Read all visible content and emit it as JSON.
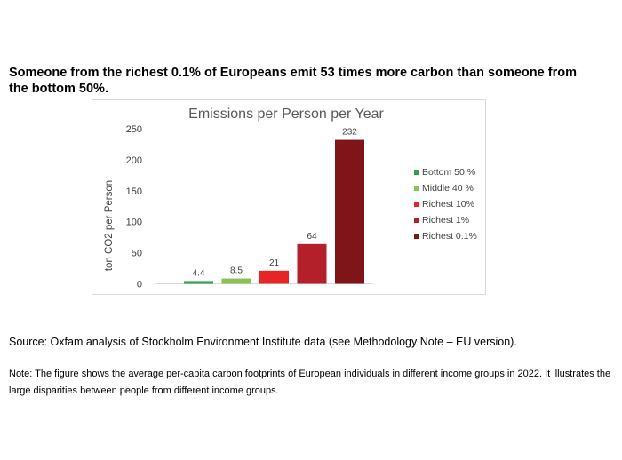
{
  "headline": "Someone from the richest 0.1% of Europeans emit 53 times more carbon than someone from the bottom 50%.",
  "source": "Source: Oxfam analysis of Stockholm Environment Institute data (see Methodology Note – EU version).",
  "note": "Note: The figure shows the average per-capita carbon footprints of European individuals in different income groups in 2022. It illustrates the large disparities between people from different income groups.",
  "chart_data": {
    "type": "bar",
    "title": "Emissions per Person per Year",
    "xlabel": "",
    "ylabel": "ton CO2 per Person",
    "ylim": [
      0,
      250
    ],
    "yticks": [
      0,
      50,
      100,
      150,
      200,
      250
    ],
    "grid": false,
    "legend_position": "right",
    "categories": [
      "Bottom 50 %",
      "Middle 40 %",
      "Richest 10%",
      "Richest 1%",
      "Richest 0.1%"
    ],
    "values": [
      4.4,
      8.5,
      21,
      64,
      232
    ],
    "data_labels": [
      "4.4",
      "8.5",
      "21",
      "64",
      "232"
    ],
    "colors": [
      "#2e9e4f",
      "#8cc152",
      "#e82424",
      "#b3202a",
      "#7f1519"
    ]
  }
}
